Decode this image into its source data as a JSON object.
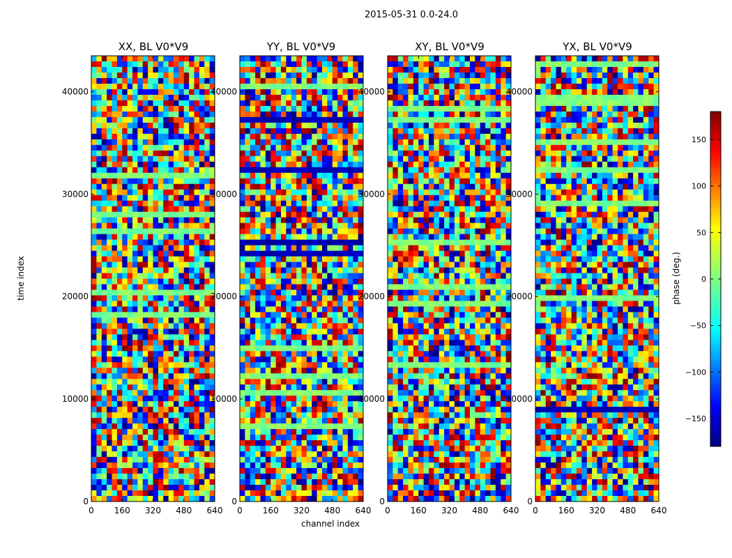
{
  "figure": {
    "suptitle": "2015-05-31 0.0-24.0",
    "xlabel": "channel index",
    "ylabel": "time index",
    "colorbar_label": "phase (deg.)"
  },
  "chart_data": [
    {
      "type": "heatmap",
      "title": "XX, BL V0*V9",
      "xlabel": "",
      "ylabel": "time index",
      "xlim": [
        0,
        640
      ],
      "ylim": [
        0,
        43500
      ],
      "xticks": [
        "0",
        "160",
        "320",
        "480",
        "640"
      ],
      "yticks": [
        "0",
        "10000",
        "20000",
        "30000",
        "40000"
      ],
      "colormap": "jet",
      "clim": [
        -180,
        180
      ]
    },
    {
      "type": "heatmap",
      "title": "YY, BL V0*V9",
      "xlabel": "channel index",
      "ylabel": "",
      "xlim": [
        0,
        640
      ],
      "ylim": [
        0,
        43500
      ],
      "xticks": [
        "0",
        "160",
        "320",
        "480",
        "640"
      ],
      "yticks": [
        "0",
        "10000",
        "20000",
        "30000",
        "40000"
      ],
      "colormap": "jet",
      "clim": [
        -180,
        180
      ]
    },
    {
      "type": "heatmap",
      "title": "XY, BL V0*V9",
      "xlabel": "",
      "ylabel": "",
      "xlim": [
        0,
        640
      ],
      "ylim": [
        0,
        43500
      ],
      "xticks": [
        "0",
        "160",
        "320",
        "480",
        "640"
      ],
      "yticks": [
        "0",
        "10000",
        "20000",
        "30000",
        "40000"
      ],
      "colormap": "jet",
      "clim": [
        -180,
        180
      ]
    },
    {
      "type": "heatmap",
      "title": "YX, BL V0*V9",
      "xlabel": "",
      "ylabel": "",
      "xlim": [
        0,
        640
      ],
      "ylim": [
        0,
        43500
      ],
      "xticks": [
        "0",
        "160",
        "320",
        "480",
        "640"
      ],
      "yticks": [
        "0",
        "10000",
        "20000",
        "30000",
        "40000"
      ],
      "colormap": "jet",
      "clim": [
        -180,
        180
      ]
    }
  ],
  "colorbar": {
    "label": "phase (deg.)",
    "range": [
      -180,
      180
    ],
    "ticks": [
      "150",
      "100",
      "50",
      "0",
      "−50",
      "−100",
      "−150"
    ],
    "tick_values": [
      150,
      100,
      50,
      0,
      -50,
      -100,
      -150
    ],
    "colors": [
      "#00007f",
      "#0000ff",
      "#00ffff",
      "#7fff7f",
      "#ffff00",
      "#ff0000",
      "#7f0000"
    ]
  }
}
